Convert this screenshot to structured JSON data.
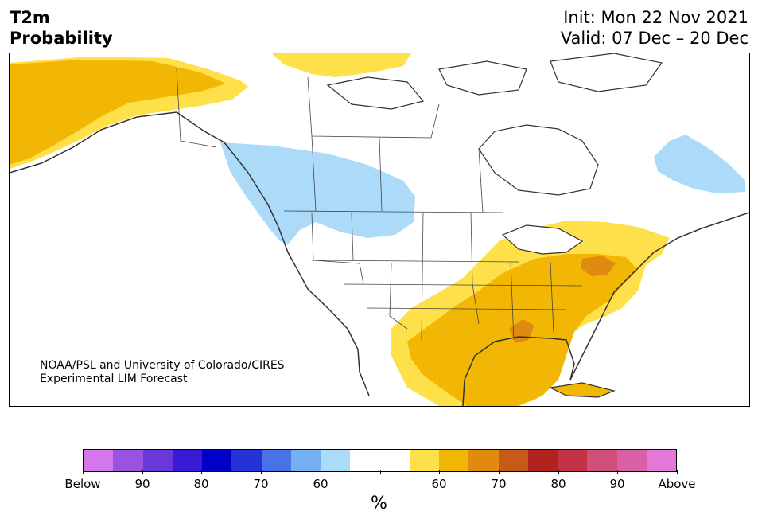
{
  "header": {
    "title_line1": "T2m",
    "title_line2": "Probability",
    "init": "Init: Mon 22 Nov 2021",
    "valid": "Valid: 07 Dec – 20 Dec"
  },
  "map": {
    "credit_line1": "NOAA/PSL and University of Colorado/CIRES",
    "credit_line2": "Experimental LIM Forecast",
    "region": "North America",
    "category_colors": {
      "below_60": "#acdaf9",
      "above_50_60": "#fde04a",
      "above_60_70": "#f2b705",
      "above_70_80": "#e08b10"
    }
  },
  "colorbar": {
    "colors": [
      "#d577ec",
      "#9a52e0",
      "#6a37d8",
      "#3a1bd5",
      "#0000c9",
      "#2433d6",
      "#4a72e8",
      "#74b0f1",
      "#acdaf9",
      "#ffffff",
      "#ffffff",
      "#fde04a",
      "#f2b705",
      "#e08b10",
      "#c85a17",
      "#b2221f",
      "#c23348",
      "#d0507a",
      "#da60a6",
      "#e478d8"
    ],
    "tick_labels": [
      "Below",
      "90",
      "80",
      "70",
      "60",
      "",
      "60",
      "70",
      "80",
      "90",
      "Above"
    ],
    "unit": "%"
  }
}
